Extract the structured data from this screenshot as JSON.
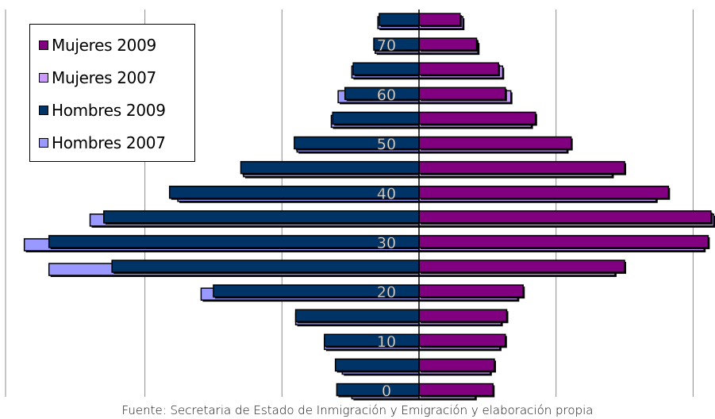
{
  "chart_data": {
    "type": "bar",
    "orientation": "horizontal-population-pyramid",
    "title": "",
    "categories": [
      0,
      5,
      10,
      15,
      20,
      25,
      30,
      35,
      40,
      45,
      50,
      55,
      60,
      65,
      70,
      75
    ],
    "y_tick_labels": [
      "0",
      "10",
      "20",
      "30",
      "40",
      "50",
      "60",
      "70"
    ],
    "x_range": [
      -3000,
      2300
    ],
    "grid": true,
    "legend_placement": "top-left",
    "series": [
      {
        "name": "Mujeres 2009",
        "side": "right",
        "color": "#800080",
        "values": [
          540,
          550,
          630,
          640,
          760,
          1500,
          2110,
          2130,
          1820,
          1500,
          1110,
          850,
          630,
          580,
          420,
          300
        ]
      },
      {
        "name": "Mujeres 2007",
        "side": "right",
        "color": "#cc99ff",
        "values": [
          410,
          520,
          590,
          600,
          720,
          1430,
          2080,
          2150,
          1730,
          1410,
          1080,
          820,
          670,
          610,
          430,
          320
        ]
      },
      {
        "name": "Hombres 2009",
        "side": "left",
        "color": "#003366",
        "values": [
          600,
          610,
          690,
          900,
          1500,
          2240,
          2700,
          2300,
          1820,
          1300,
          910,
          630,
          540,
          480,
          330,
          290
        ]
      },
      {
        "name": "Hombres 2007",
        "side": "left",
        "color": "#9999ff",
        "values": [
          490,
          560,
          690,
          900,
          1590,
          2700,
          2880,
          2400,
          1760,
          1280,
          890,
          640,
          590,
          490,
          320,
          300
        ]
      }
    ]
  },
  "legend": {
    "items": [
      {
        "label": "Mujeres 2009",
        "color": "#800080"
      },
      {
        "label": "Mujeres 2007",
        "color": "#cc99ff"
      },
      {
        "label": "Hombres 2009",
        "color": "#003366"
      },
      {
        "label": "Hombres 2007",
        "color": "#9999ff"
      }
    ]
  },
  "source_note": "Fuente: Secretaria de Estado de Inmigración y Emigración y elaboración propia"
}
